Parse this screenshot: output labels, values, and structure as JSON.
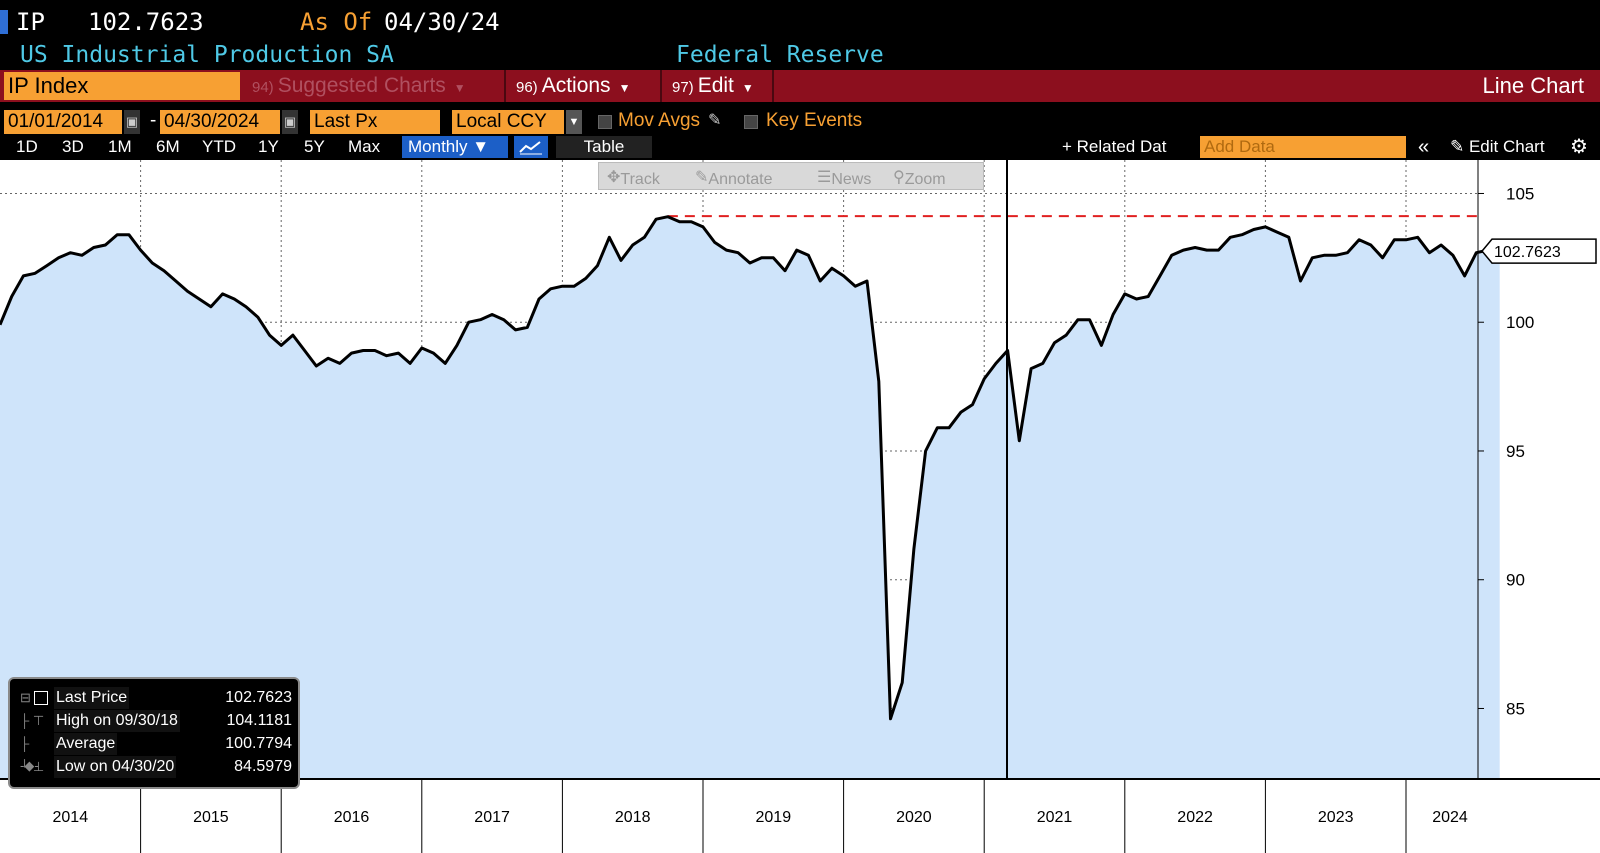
{
  "header": {
    "ticker": "IP",
    "last_value": "102.7623",
    "as_of_label": "As Of",
    "as_of_date": "04/30/24",
    "security_name": "US Industrial Production SA",
    "source": "Federal Reserve"
  },
  "menu": {
    "index_field": "IP Index",
    "suggested_num": "94)",
    "suggested_label": "Suggested Charts",
    "actions_num": "96)",
    "actions_label": "Actions",
    "edit_num": "97)",
    "edit_label": "Edit",
    "chart_type": "Line Chart"
  },
  "settings": {
    "start_date": "01/01/2014",
    "end_date": "04/30/2024",
    "field": "Last Px",
    "currency": "Local CCY",
    "mov_avgs": "Mov Avgs",
    "key_events": "Key Events"
  },
  "ranges": [
    "1D",
    "3D",
    "1M",
    "6M",
    "YTD",
    "1Y",
    "5Y",
    "Max"
  ],
  "periodicity": "Monthly ▼",
  "table_label": "Table",
  "related_data": "+ Related Dat",
  "add_data_placeholder": "Add Data",
  "edit_chart": "Edit Chart",
  "chart_tools": {
    "track": "Track",
    "annotate": "Annotate",
    "news": "News",
    "zoom": "Zoom"
  },
  "colors": {
    "accent_orange": "#f7a033",
    "menu_red": "#8c0f1e",
    "title_cyan": "#4fc9e6",
    "area_fill": "#cfe4fa",
    "high_line": "#e02020"
  },
  "legend": {
    "last_label": "Last Price",
    "last_value": "102.7623",
    "high_label": "High on 09/30/18",
    "high_value": "104.1181",
    "avg_label": "Average",
    "avg_value": "100.7794",
    "low_label": "Low on 04/30/20",
    "low_value": "84.5979"
  },
  "chart_data": {
    "type": "area",
    "title": "US Industrial Production SA",
    "xlabel": "",
    "ylabel": "",
    "x_axis_labels": [
      "2014",
      "2015",
      "2016",
      "2017",
      "2018",
      "2019",
      "2020",
      "2021",
      "2022",
      "2023",
      "2024"
    ],
    "y_ticks": [
      85,
      90,
      95,
      100,
      105
    ],
    "ylim": [
      82.3,
      106.3
    ],
    "x_start_year": 2014.0,
    "x_step_months": 1,
    "series": [
      {
        "name": "Last Price",
        "values": [
          99.9,
          101.0,
          101.8,
          101.9,
          102.2,
          102.5,
          102.7,
          102.6,
          102.9,
          103.0,
          103.4,
          103.4,
          102.8,
          102.3,
          102.0,
          101.6,
          101.2,
          100.9,
          100.6,
          101.1,
          100.9,
          100.6,
          100.2,
          99.5,
          99.1,
          99.5,
          98.9,
          98.3,
          98.6,
          98.4,
          98.8,
          98.9,
          98.9,
          98.7,
          98.8,
          98.4,
          99.0,
          98.8,
          98.4,
          99.1,
          100.0,
          100.1,
          100.3,
          100.1,
          99.7,
          99.8,
          100.9,
          101.3,
          101.4,
          101.4,
          101.7,
          102.2,
          103.3,
          102.4,
          103.0,
          103.3,
          104.0,
          104.1,
          103.9,
          103.9,
          103.7,
          103.1,
          102.8,
          102.7,
          102.3,
          102.5,
          102.5,
          102.0,
          102.8,
          102.6,
          101.6,
          102.1,
          101.8,
          101.4,
          101.6,
          97.7,
          84.6,
          86.0,
          91.2,
          95.0,
          95.9,
          95.9,
          96.5,
          96.8,
          97.8,
          98.4,
          98.9,
          95.4,
          98.2,
          98.4,
          99.2,
          99.5,
          100.1,
          100.1,
          99.1,
          100.3,
          101.1,
          100.9,
          101.0,
          101.8,
          102.6,
          102.8,
          102.9,
          102.8,
          102.8,
          103.3,
          103.4,
          103.6,
          103.7,
          103.5,
          103.3,
          101.6,
          102.5,
          102.6,
          102.6,
          102.7,
          103.2,
          103.0,
          102.5,
          103.2,
          103.2,
          103.3,
          102.7,
          103.0,
          102.6,
          101.8,
          102.7,
          102.8,
          102.8
        ]
      }
    ],
    "high": {
      "date": "09/30/18",
      "value": 104.1181
    },
    "low": {
      "date": "04/30/20",
      "value": 84.5979
    },
    "average": 100.7794,
    "last": 102.7623,
    "cursor_date": "2021"
  }
}
